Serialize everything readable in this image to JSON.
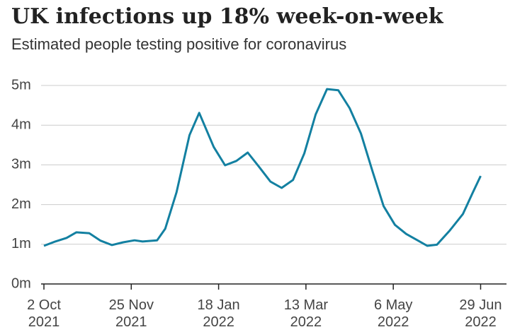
{
  "chart_data": {
    "type": "line",
    "title": "UK infections up 18% week-on-week",
    "subtitle": "Estimated people testing positive for coronavirus",
    "x": [
      "2021-10-02",
      "2021-10-09",
      "2021-10-16",
      "2021-10-22",
      "2021-10-30",
      "2021-11-06",
      "2021-11-13",
      "2021-11-20",
      "2021-11-27",
      "2021-12-02",
      "2021-12-11",
      "2021-12-16",
      "2021-12-23",
      "2021-12-31",
      "2022-01-06",
      "2022-01-15",
      "2022-01-22",
      "2022-01-29",
      "2022-02-05",
      "2022-02-12",
      "2022-02-19",
      "2022-02-26",
      "2022-03-05",
      "2022-03-12",
      "2022-03-19",
      "2022-03-26",
      "2022-04-02",
      "2022-04-09",
      "2022-04-16",
      "2022-04-23",
      "2022-04-30",
      "2022-05-07",
      "2022-05-14",
      "2022-05-21",
      "2022-05-27",
      "2022-06-02",
      "2022-06-10",
      "2022-06-18",
      "2022-06-24",
      "2022-06-29"
    ],
    "series": [
      {
        "name": "Estimated people testing positive",
        "color": "#1380a1",
        "values": [
          960000,
          1070000,
          1160000,
          1300000,
          1280000,
          1090000,
          980000,
          1050000,
          1100000,
          1070000,
          1100000,
          1390000,
          2310000,
          3750000,
          4310000,
          3450000,
          2990000,
          3100000,
          3310000,
          2950000,
          2580000,
          2420000,
          2620000,
          3290000,
          4270000,
          4910000,
          4880000,
          4430000,
          3790000,
          2860000,
          1960000,
          1490000,
          1260000,
          1100000,
          960000,
          990000,
          1350000,
          1760000,
          2290000,
          2720000
        ]
      }
    ],
    "xlim": [
      "2021-10-02",
      "2022-07-15"
    ],
    "xticks": [
      {
        "value": "2021-10-02",
        "label": "2 Oct 2021"
      },
      {
        "value": "2021-11-25",
        "label": "25 Nov 2021"
      },
      {
        "value": "2022-01-18",
        "label": "18 Jan 2022"
      },
      {
        "value": "2022-03-13",
        "label": "13 Mar 2022"
      },
      {
        "value": "2022-05-06",
        "label": "6 May 2022"
      },
      {
        "value": "2022-06-29",
        "label": "29 Jun 2022"
      }
    ],
    "ylim": [
      0,
      5000000
    ],
    "yticks": [
      {
        "value": 0,
        "label": "0m"
      },
      {
        "value": 1000000,
        "label": "1m"
      },
      {
        "value": 2000000,
        "label": "2m"
      },
      {
        "value": 3000000,
        "label": "3m"
      },
      {
        "value": 4000000,
        "label": "4m"
      },
      {
        "value": 5000000,
        "label": "5m"
      }
    ],
    "grid": true
  }
}
